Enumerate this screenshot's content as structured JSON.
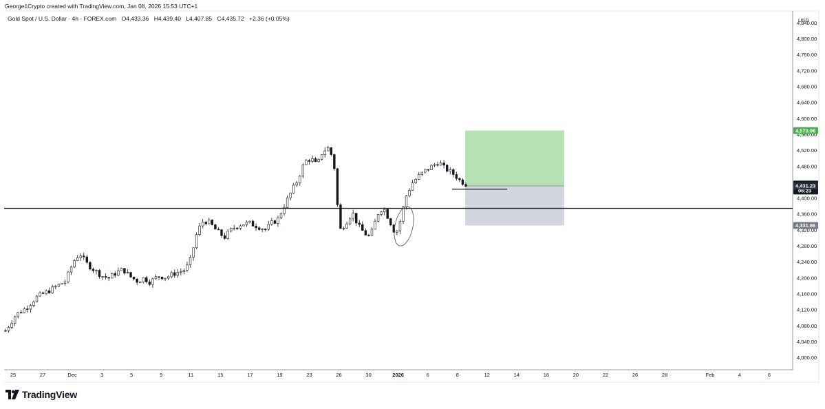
{
  "header": {
    "attribution": "George1Crypto created with TradingView.com, Jan 08, 2026 15:53 UTC+1",
    "symbol": "Gold Spot / U.S. Dollar · 4h · FOREX.com",
    "open": "O4,433.36",
    "high": "H4,439.40",
    "low": "L4,407.85",
    "close": "C4,435.72",
    "change": "+2.36 (+0.05%)"
  },
  "chart_data": {
    "type": "candlestick",
    "currency_label": "USD",
    "y_ticks": [
      "4,840.00",
      "4,800.00",
      "4,760.00",
      "4,720.00",
      "4,680.00",
      "4,640.00",
      "4,600.00",
      "4,560.00",
      "4,520.00",
      "4,480.00",
      "4,440.00",
      "4,400.00",
      "4,360.00",
      "4,320.00",
      "4,280.00",
      "4,240.00",
      "4,200.00",
      "4,160.00",
      "4,120.00",
      "4,080.00",
      "4,040.00",
      "4,000.00"
    ],
    "y_tick_values": [
      4840,
      4800,
      4760,
      4720,
      4680,
      4640,
      4600,
      4560,
      4520,
      4480,
      4440,
      4400,
      4360,
      4320,
      4280,
      4240,
      4200,
      4160,
      4120,
      4080,
      4040,
      4000
    ],
    "x_ticks": [
      {
        "label": "25",
        "bold": false
      },
      {
        "label": "27",
        "bold": false
      },
      {
        "label": "Dec",
        "bold": false
      },
      {
        "label": "3",
        "bold": false
      },
      {
        "label": "5",
        "bold": false
      },
      {
        "label": "9",
        "bold": false
      },
      {
        "label": "11",
        "bold": false
      },
      {
        "label": "15",
        "bold": false
      },
      {
        "label": "17",
        "bold": false
      },
      {
        "label": "19",
        "bold": false
      },
      {
        "label": "23",
        "bold": false
      },
      {
        "label": "26",
        "bold": false
      },
      {
        "label": "30",
        "bold": false
      },
      {
        "label": "2026",
        "bold": true
      },
      {
        "label": "6",
        "bold": false
      },
      {
        "label": "8",
        "bold": false
      },
      {
        "label": "12",
        "bold": false
      },
      {
        "label": "14",
        "bold": false
      },
      {
        "label": "16",
        "bold": false
      },
      {
        "label": "20",
        "bold": false
      },
      {
        "label": "22",
        "bold": false
      },
      {
        "label": "26",
        "bold": false
      },
      {
        "label": "28",
        "bold": false
      },
      {
        "label": "Feb",
        "bold": false
      },
      {
        "label": "4",
        "bold": false
      },
      {
        "label": "6",
        "bold": false
      }
    ],
    "price_range": [
      3970,
      4870
    ],
    "horizontal_level": 4375,
    "position": {
      "entry": 4431.23,
      "target": 4570.06,
      "stop": 4331.86,
      "target_label": "4,570.06",
      "entry_label": "4,431.23",
      "stop_label": "4,331.86",
      "profit_color": "#b2dfb1",
      "loss_color": "#d1d4dc"
    },
    "last_price": {
      "label": "4,435.72",
      "countdown": "06:23",
      "value": 4435.72
    },
    "level_line": {
      "price": 4423
    },
    "anchors": [
      [
        0,
        4068
      ],
      [
        10,
        4108
      ],
      [
        20,
        4125
      ],
      [
        30,
        4152
      ],
      [
        40,
        4165
      ],
      [
        50,
        4180
      ],
      [
        58,
        4192
      ],
      [
        66,
        4242
      ],
      [
        72,
        4262
      ],
      [
        78,
        4238
      ],
      [
        86,
        4220
      ],
      [
        94,
        4205
      ],
      [
        100,
        4200
      ],
      [
        108,
        4215
      ],
      [
        114,
        4222
      ],
      [
        120,
        4205
      ],
      [
        128,
        4192
      ],
      [
        134,
        4200
      ],
      [
        140,
        4190
      ],
      [
        148,
        4205
      ],
      [
        156,
        4202
      ],
      [
        164,
        4212
      ],
      [
        172,
        4218
      ],
      [
        178,
        4235
      ],
      [
        186,
        4318
      ],
      [
        192,
        4345
      ],
      [
        198,
        4338
      ],
      [
        204,
        4320
      ],
      [
        212,
        4302
      ],
      [
        220,
        4325
      ],
      [
        228,
        4335
      ],
      [
        236,
        4338
      ],
      [
        244,
        4330
      ],
      [
        252,
        4322
      ],
      [
        258,
        4338
      ],
      [
        264,
        4348
      ],
      [
        270,
        4382
      ],
      [
        276,
        4412
      ],
      [
        282,
        4440
      ],
      [
        290,
        4492
      ],
      [
        296,
        4500
      ],
      [
        302,
        4482
      ],
      [
        306,
        4512
      ],
      [
        312,
        4528
      ],
      [
        318,
        4498
      ],
      [
        320,
        4425
      ],
      [
        324,
        4320
      ],
      [
        330,
        4340
      ],
      [
        336,
        4365
      ],
      [
        342,
        4330
      ],
      [
        348,
        4312
      ],
      [
        352,
        4305
      ],
      [
        356,
        4320
      ],
      [
        360,
        4360
      ],
      [
        366,
        4378
      ],
      [
        372,
        4345
      ],
      [
        378,
        4310
      ],
      [
        382,
        4340
      ],
      [
        388,
        4405
      ],
      [
        394,
        4438
      ],
      [
        400,
        4455
      ],
      [
        408,
        4472
      ],
      [
        414,
        4482
      ],
      [
        420,
        4492
      ],
      [
        424,
        4478
      ],
      [
        430,
        4468
      ],
      [
        436,
        4457
      ],
      [
        440,
        4445
      ],
      [
        446,
        4436
      ]
    ],
    "x_start_bar": 0,
    "x_end_bar": 446
  }
}
